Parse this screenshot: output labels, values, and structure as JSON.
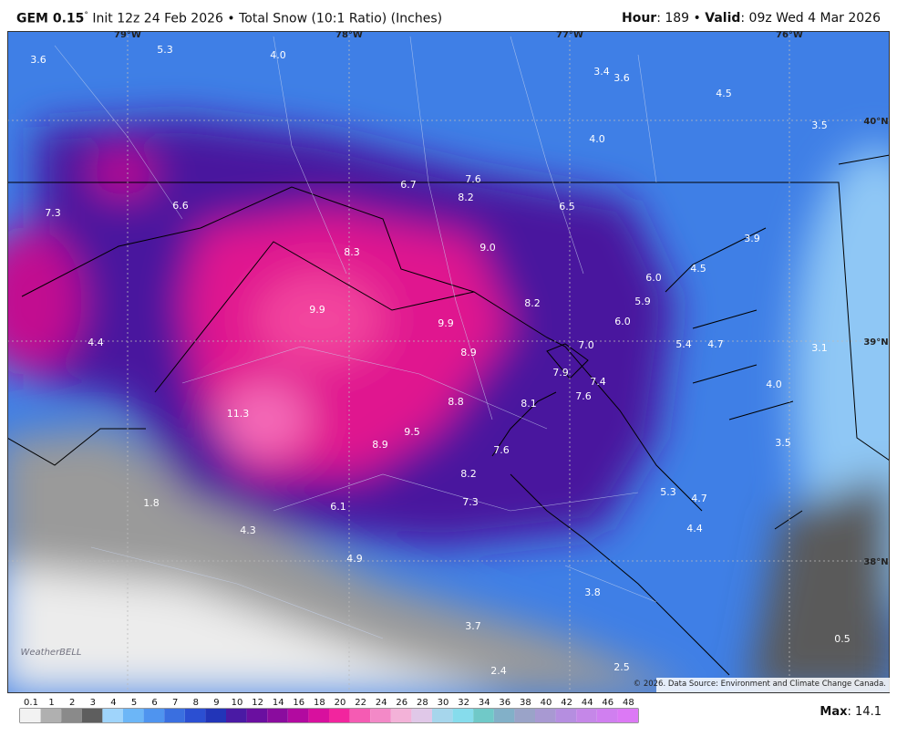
{
  "header": {
    "model": "GEM 0.15",
    "degree": "°",
    "title": "Init 12z 24 Feb 2026 • Total Snow (10:1 Ratio) (Inches)",
    "hour_label": "Hour",
    "hour": ": 189 • ",
    "valid_label": "Valid",
    "valid": ": 09z Wed 4 Mar 2026"
  },
  "map": {
    "longitudes": [
      "79°W",
      "78°W",
      "77°W",
      "76°W"
    ],
    "latitudes": [
      "40°N",
      "39°N",
      "38°N"
    ],
    "snow_totals": [
      "3.6",
      "5.3",
      "4.0",
      "3.4",
      "3.6",
      "4.5",
      "4.0",
      "3.5",
      "7.6",
      "6.7",
      "8.2",
      "6.5",
      "7.3",
      "6.6",
      "9.0",
      "8.3",
      "3.9",
      "4.5",
      "6.0",
      "5.9",
      "8.2",
      "9.9",
      "9.9",
      "6.0",
      "4.4",
      "7.0",
      "5.4",
      "4.7",
      "3.1",
      "8.9",
      "7.9",
      "7.4",
      "4.0",
      "7.6",
      "8.8",
      "8.1",
      "11.3",
      "9.5",
      "8.9",
      "3.5",
      "7.6",
      "8.2",
      "5.3",
      "4.7",
      "1.8",
      "7.3",
      "6.1",
      "4.3",
      "4.4",
      "4.9",
      "3.8",
      "3.7",
      "0.5",
      "2.5",
      "2.4"
    ],
    "logo": "WeatherBELL",
    "credit": "© 2026. Data Source: Environment and Climate Change Canada."
  },
  "legend": {
    "ticks": [
      0.1,
      1,
      2,
      3,
      4,
      5,
      6,
      7,
      8,
      9,
      10,
      12,
      14,
      16,
      18,
      20,
      22,
      24,
      26,
      28,
      30,
      32,
      34,
      36,
      38,
      40,
      42,
      44,
      46,
      48
    ],
    "colors": [
      "#f2f2f2",
      "#b0b0b0",
      "#8a8a8a",
      "#5e5e5e",
      "#9fd4fb",
      "#6cb6f7",
      "#4f94ef",
      "#3a6fe0",
      "#2b4fd2",
      "#2235b8",
      "#4a1aa4",
      "#6a0fa0",
      "#8a0c9e",
      "#b20aa0",
      "#d8109e",
      "#f2259e",
      "#f55bb3",
      "#f389c7",
      "#f3b2d8",
      "#e0c8e8",
      "#a6d6ec",
      "#86dcec",
      "#70c9c8",
      "#82b0c8",
      "#9aa3c8",
      "#a899d2",
      "#b58ee0",
      "#c587e8",
      "#d07ff0",
      "#dc79f5"
    ]
  },
  "footer": {
    "max_label": "Max",
    "max": ": 14.1"
  }
}
